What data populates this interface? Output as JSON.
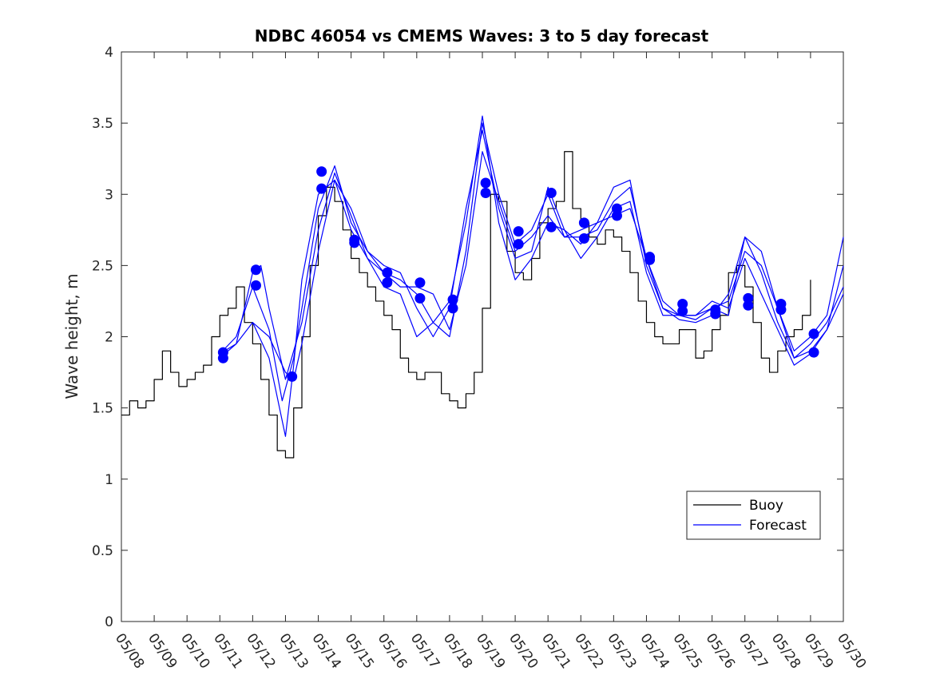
{
  "chart_data": {
    "type": "line",
    "title": "NDBC 46054 vs CMEMS Waves: 3 to 5 day forecast",
    "xlabel": "",
    "ylabel": "Wave height, m",
    "x_tick_labels": [
      "05/08",
      "05/09",
      "05/10",
      "05/11",
      "05/12",
      "05/13",
      "05/14",
      "05/15",
      "05/16",
      "05/17",
      "05/18",
      "05/19",
      "05/20",
      "05/21",
      "05/22",
      "05/23",
      "05/24",
      "05/25",
      "05/26",
      "05/27",
      "05/28",
      "05/29",
      "05/30"
    ],
    "xlim": [
      0,
      22
    ],
    "x_units": "days since 05/08",
    "y_tick_labels": [
      "0",
      "0.5",
      "1",
      "1.5",
      "2",
      "2.5",
      "3",
      "3.5",
      "4"
    ],
    "ylim": [
      0,
      4
    ],
    "grid": false,
    "legend": {
      "placement": "bottom-right",
      "entries": [
        {
          "label": "Buoy",
          "color": "#000000"
        },
        {
          "label": "Forecast",
          "color": "#0000ff"
        }
      ]
    },
    "colors": {
      "buoy": "#000000",
      "forecast": "#0000ff"
    },
    "series": [
      {
        "name": "Buoy",
        "color": "#000000",
        "x": [
          0,
          0.25,
          0.5,
          0.75,
          1,
          1.25,
          1.5,
          1.75,
          2,
          2.25,
          2.5,
          2.75,
          3,
          3.25,
          3.5,
          3.75,
          4,
          4.25,
          4.5,
          4.75,
          5,
          5.25,
          5.5,
          5.75,
          6,
          6.25,
          6.5,
          6.75,
          7,
          7.25,
          7.5,
          7.75,
          8,
          8.25,
          8.5,
          8.75,
          9,
          9.25,
          9.5,
          9.75,
          10,
          10.25,
          10.5,
          10.75,
          11,
          11.25,
          11.5,
          11.75,
          12,
          12.25,
          12.5,
          12.75,
          13,
          13.25,
          13.5,
          13.75,
          14,
          14.25,
          14.5,
          14.75,
          15,
          15.25,
          15.5,
          15.75,
          16,
          16.25,
          16.5,
          16.75,
          17,
          17.25,
          17.5,
          17.75,
          18,
          18.25,
          18.5,
          18.75,
          19,
          19.25,
          19.5,
          19.75,
          20,
          20.25,
          20.5,
          20.75,
          21
        ],
        "y": [
          1.45,
          1.55,
          1.5,
          1.55,
          1.7,
          1.9,
          1.75,
          1.65,
          1.7,
          1.75,
          1.8,
          2.0,
          2.15,
          2.2,
          2.35,
          2.1,
          1.95,
          1.7,
          1.45,
          1.2,
          1.15,
          1.5,
          2.0,
          2.5,
          2.85,
          3.05,
          2.95,
          2.75,
          2.55,
          2.45,
          2.35,
          2.25,
          2.15,
          2.05,
          1.85,
          1.75,
          1.7,
          1.75,
          1.75,
          1.6,
          1.55,
          1.5,
          1.6,
          1.75,
          2.2,
          3.0,
          2.95,
          2.6,
          2.45,
          2.4,
          2.55,
          2.8,
          2.9,
          2.95,
          3.3,
          2.9,
          2.8,
          2.7,
          2.65,
          2.75,
          2.7,
          2.6,
          2.45,
          2.25,
          2.1,
          2.0,
          1.95,
          1.95,
          2.05,
          2.05,
          1.85,
          1.9,
          2.05,
          2.15,
          2.45,
          2.5,
          2.35,
          2.1,
          1.85,
          1.75,
          1.9,
          2.0,
          2.05,
          2.15,
          2.4
        ]
      },
      {
        "name": "Forecast",
        "color": "#0000ff",
        "x": [
          3,
          3.5,
          4,
          4.5,
          5,
          5.25,
          5.5,
          6,
          6.5,
          7,
          7.5,
          8,
          8.5,
          9,
          9.5,
          10,
          10.5,
          11,
          11.5,
          12,
          12.5,
          13,
          13.5,
          14,
          14.5,
          15,
          15.5,
          16,
          16.5,
          17,
          17.5,
          18,
          18.5,
          19,
          19.5,
          20,
          20.5,
          21,
          21.5,
          22
        ],
        "y": [
          1.88,
          1.95,
          2.1,
          2.0,
          1.75,
          1.7,
          1.95,
          2.6,
          3.1,
          2.9,
          2.6,
          2.45,
          2.35,
          2.35,
          2.3,
          2.05,
          2.5,
          3.3,
          2.95,
          2.6,
          2.7,
          2.85,
          2.7,
          2.75,
          2.8,
          2.85,
          2.9,
          2.55,
          2.25,
          2.15,
          2.15,
          2.2,
          2.25,
          2.6,
          2.5,
          2.2,
          1.9,
          2.0,
          2.15,
          2.7
        ]
      },
      {
        "name": "",
        "color": "#0000ff",
        "x": [
          3,
          3.5,
          4,
          4.25,
          4.5,
          5,
          5.5,
          6,
          6.5,
          7,
          7.5,
          8,
          8.5,
          9,
          9.5,
          10,
          10.5,
          11,
          11.5,
          12,
          12.5,
          13,
          13.5,
          14,
          14.5,
          15,
          15.5,
          16,
          16.5,
          17,
          17.5,
          18,
          18.5,
          19,
          19.5,
          20,
          20.5,
          21,
          21.5,
          22
        ],
        "y": [
          1.85,
          1.95,
          2.45,
          2.5,
          2.2,
          1.7,
          2.1,
          2.75,
          3.15,
          2.85,
          2.55,
          2.45,
          2.4,
          2.3,
          2.1,
          2.0,
          2.6,
          3.5,
          3.0,
          2.65,
          2.75,
          3.0,
          2.7,
          2.7,
          2.75,
          2.95,
          3.05,
          2.55,
          2.2,
          2.15,
          2.12,
          2.2,
          2.15,
          2.7,
          2.6,
          2.2,
          1.85,
          1.9,
          2.05,
          2.5
        ]
      },
      {
        "name": "",
        "color": "#0000ff",
        "x": [
          3,
          3.5,
          4,
          4.5,
          4.9,
          5.25,
          5.5,
          6,
          6.5,
          7,
          7.5,
          8,
          8.5,
          9,
          9.5,
          10,
          10.5,
          11,
          11.5,
          12,
          12.5,
          13,
          13.5,
          14,
          14.5,
          15,
          15.5,
          16,
          16.5,
          17,
          17.5,
          18,
          18.5,
          19,
          19.5,
          20,
          20.5,
          21,
          21.5,
          22
        ],
        "y": [
          1.88,
          2.0,
          2.35,
          2.05,
          1.55,
          1.85,
          2.2,
          2.9,
          3.2,
          2.8,
          2.6,
          2.5,
          2.45,
          2.2,
          2.0,
          2.2,
          2.9,
          3.45,
          2.9,
          2.55,
          2.6,
          3.05,
          2.75,
          2.65,
          2.8,
          3.05,
          3.1,
          2.5,
          2.2,
          2.12,
          2.1,
          2.15,
          2.3,
          2.7,
          2.45,
          2.1,
          1.85,
          1.95,
          2.1,
          2.35
        ]
      },
      {
        "name": "",
        "color": "#0000ff",
        "x": [
          4,
          4.5,
          5,
          5.25,
          5.5,
          6,
          6.5,
          7,
          7.5,
          8,
          8.5,
          9,
          9.5,
          10,
          10.5,
          11,
          11.5,
          12,
          12.5,
          13,
          13.5,
          14,
          14.5,
          15,
          15.5,
          16,
          16.5,
          17,
          17.5,
          18,
          18.5,
          19,
          19.5,
          20,
          20.5,
          21,
          21.5,
          22
        ],
        "y": [
          2.1,
          1.85,
          1.3,
          1.8,
          2.4,
          3.0,
          3.1,
          2.75,
          2.55,
          2.35,
          2.3,
          2.0,
          2.1,
          2.25,
          2.8,
          3.55,
          2.8,
          2.4,
          2.55,
          2.8,
          2.75,
          2.55,
          2.7,
          2.9,
          2.95,
          2.45,
          2.15,
          2.15,
          2.15,
          2.25,
          2.2,
          2.55,
          2.3,
          2.05,
          1.8,
          1.88,
          2.05,
          2.3
        ]
      }
    ],
    "markers": {
      "name": "Forecast",
      "color": "#0000ff",
      "x": [
        3.1,
        3.1,
        4.1,
        4.1,
        5.2,
        6.1,
        6.1,
        7.1,
        7.1,
        8.1,
        8.1,
        9.1,
        9.1,
        10.1,
        10.1,
        11.1,
        11.1,
        12.1,
        12.1,
        13.1,
        13.1,
        14.1,
        14.1,
        15.1,
        15.1,
        16.1,
        16.1,
        17.1,
        17.1,
        18.1,
        18.1,
        19.1,
        19.1,
        20.1,
        20.1,
        21.1,
        21.1
      ],
      "y": [
        1.89,
        1.85,
        2.47,
        2.36,
        1.72,
        3.16,
        3.04,
        2.68,
        2.66,
        2.45,
        2.38,
        2.38,
        2.27,
        2.26,
        2.2,
        3.08,
        3.01,
        2.74,
        2.65,
        3.01,
        2.77,
        2.8,
        2.69,
        2.9,
        2.85,
        2.56,
        2.54,
        2.23,
        2.18,
        2.19,
        2.16,
        2.27,
        2.22,
        2.23,
        2.19,
        2.02,
        1.89
      ]
    }
  }
}
